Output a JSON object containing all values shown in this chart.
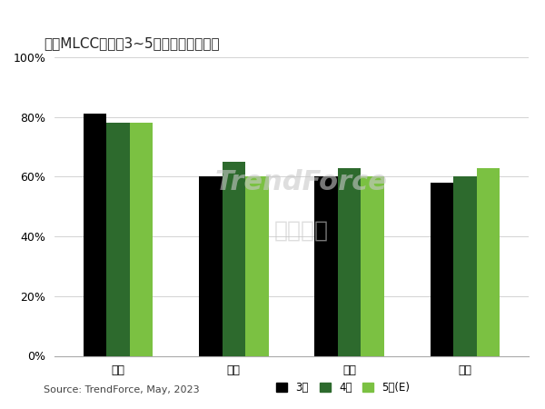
{
  "title_display": "图、MLCC供货境3~5月平均产能稼动率",
  "categories": [
    "日厂",
    "韩厂",
    "台厂",
    "陆厂"
  ],
  "series": {
    "3月": [
      0.81,
      0.6,
      0.6,
      0.58
    ],
    "4月": [
      0.78,
      0.65,
      0.63,
      0.6
    ],
    "5月(E)": [
      0.78,
      0.6,
      0.6,
      0.63
    ]
  },
  "colors": {
    "3月": "#000000",
    "4月": "#2d6a2d",
    "5月(E)": "#7bc142"
  },
  "ylim": [
    0,
    1.0
  ],
  "yticks": [
    0,
    0.2,
    0.4,
    0.6,
    0.8,
    1.0
  ],
  "ytick_labels": [
    "0%",
    "20%",
    "40%",
    "60%",
    "80%",
    "100%"
  ],
  "source_text": "Source: TrendForce, May, 2023",
  "watermark_text1": "TrendForce",
  "watermark_text2": "集邦咋询",
  "background_color": "#ffffff",
  "bar_width": 0.2,
  "title_fontsize": 11,
  "tick_fontsize": 9,
  "legend_fontsize": 8.5,
  "source_fontsize": 8
}
